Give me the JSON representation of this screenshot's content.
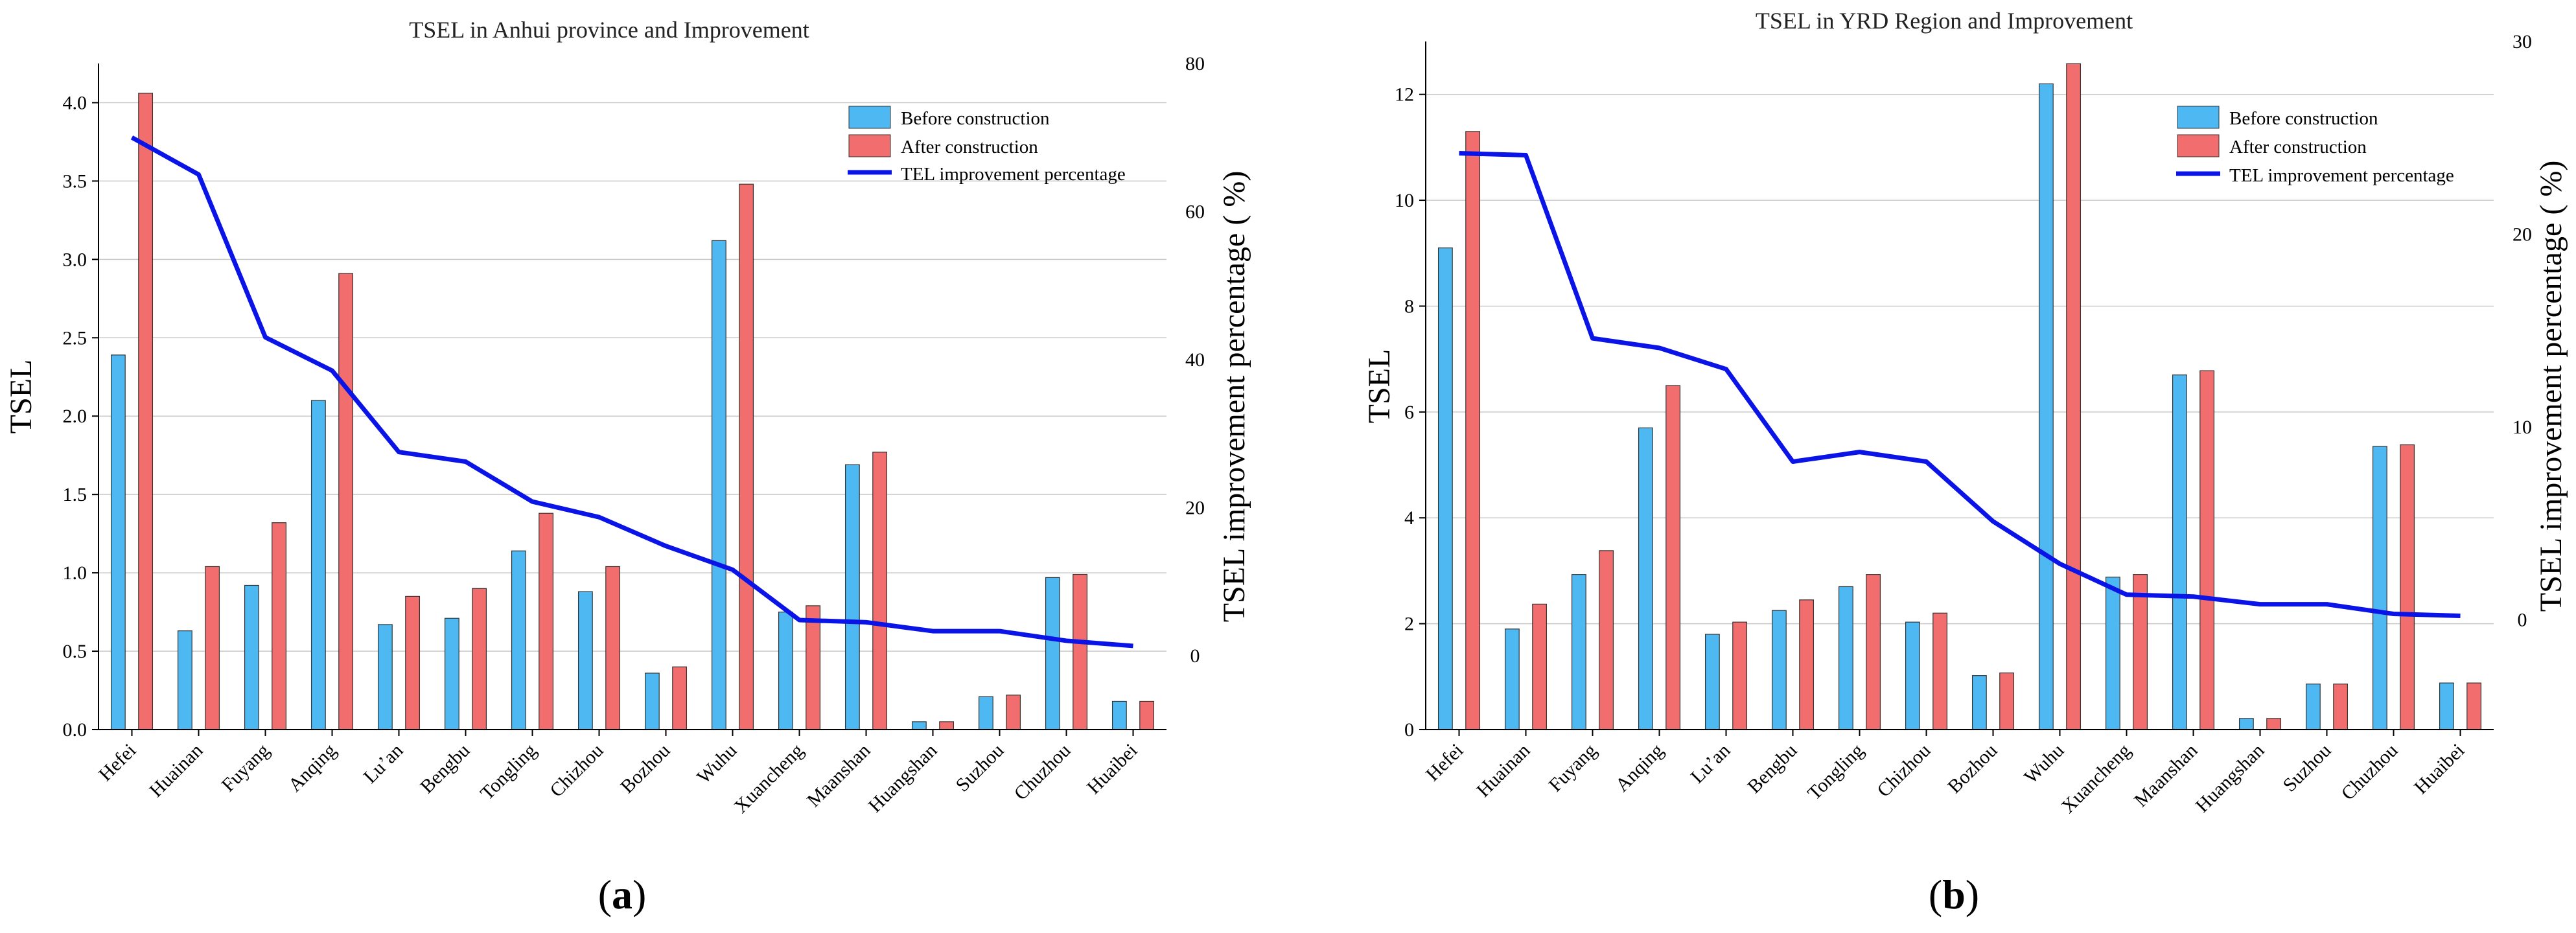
{
  "figure": {
    "panel_labels": [
      {
        "open": "(",
        "letter": "a",
        "close": ")"
      },
      {
        "open": "(",
        "letter": "b",
        "close": ")"
      }
    ]
  },
  "colors": {
    "before": "#4db8f2",
    "after": "#f26d6d",
    "line": "#0a14e6",
    "bar_edge": "#333333"
  },
  "chart_data": [
    {
      "type": "bar",
      "title": "TSEL in Anhui province and Improvement",
      "categories": [
        "Hefei",
        "Huainan",
        "Fuyang",
        "Anqing",
        "Lu’an",
        "Bengbu",
        "Tongling",
        "Chizhou",
        "Bozhou",
        "Wuhu",
        "Xuancheng",
        "Maanshan",
        "Huangshan",
        "Suzhou",
        "Chuzhou",
        "Huaibei"
      ],
      "xlabel": "",
      "ylabel": "TSEL",
      "ylim": [
        0,
        4.25
      ],
      "yticks": [
        0.0,
        0.5,
        1.0,
        1.5,
        2.0,
        2.5,
        3.0,
        3.5,
        4.0
      ],
      "ytick_labels": [
        "0.0",
        "0.5",
        "1.0",
        "1.5",
        "2.0",
        "2.5",
        "3.0",
        "3.5",
        "4.0"
      ],
      "y2label": "TSEL improvement percentage (  %)",
      "y2lim": [
        -10,
        80
      ],
      "y2ticks": [
        0,
        20,
        40,
        60,
        80
      ],
      "y2tick_labels": [
        "0",
        "20",
        "40",
        "60",
        "80"
      ],
      "grid": true,
      "legend_position": "top-right",
      "series": [
        {
          "name": "Before construction",
          "kind": "bar",
          "axis": "left",
          "values": [
            2.39,
            0.63,
            0.92,
            2.1,
            0.67,
            0.71,
            1.14,
            0.88,
            0.36,
            3.12,
            0.75,
            1.69,
            0.05,
            0.21,
            0.97,
            0.18
          ]
        },
        {
          "name": "After construction",
          "kind": "bar",
          "axis": "left",
          "values": [
            4.06,
            1.04,
            1.32,
            2.91,
            0.85,
            0.9,
            1.38,
            1.04,
            0.4,
            3.48,
            0.79,
            1.77,
            0.05,
            0.22,
            0.99,
            0.18
          ]
        },
        {
          "name": "TEL improvement percentage",
          "kind": "line",
          "axis": "right",
          "values": [
            70,
            65,
            43,
            38.5,
            27.5,
            26.2,
            20.8,
            18.7,
            14.8,
            11.6,
            4.8,
            4.5,
            3.3,
            3.3,
            2.0,
            1.3
          ]
        }
      ]
    },
    {
      "type": "bar",
      "title": "TSEL in YRD Region and Improvement",
      "categories": [
        "Hefei",
        "Huainan",
        "Fuyang",
        "Anqing",
        "Lu’an",
        "Bengbu",
        "Tongling",
        "Chizhou",
        "Bozhou",
        "Wuhu",
        "Xuancheng",
        "Maanshan",
        "Huangshan",
        "Suzhou",
        "Chuzhou",
        "Huaibei"
      ],
      "xlabel": "",
      "ylabel": "TSEL",
      "ylim": [
        0,
        13
      ],
      "yticks": [
        0,
        2,
        4,
        6,
        8,
        10,
        12
      ],
      "ytick_labels": [
        "0",
        "2",
        "4",
        "6",
        "8",
        "10",
        "12"
      ],
      "y2label": "TSEL improvement percentage (  %)",
      "y2lim": [
        -5.7,
        30
      ],
      "y2ticks": [
        0,
        10,
        20,
        30
      ],
      "y2tick_labels": [
        "0",
        "10",
        "20",
        "30"
      ],
      "grid": true,
      "legend_position": "top-right",
      "series": [
        {
          "name": "Before construction",
          "kind": "bar",
          "axis": "left",
          "values": [
            9.1,
            1.9,
            2.93,
            5.7,
            1.8,
            2.25,
            2.7,
            2.03,
            1.02,
            12.2,
            2.88,
            6.7,
            0.21,
            0.86,
            5.35,
            0.88
          ]
        },
        {
          "name": "After construction",
          "kind": "bar",
          "axis": "left",
          "values": [
            11.3,
            2.37,
            3.38,
            6.5,
            2.03,
            2.45,
            2.93,
            2.2,
            1.07,
            12.58,
            2.93,
            6.78,
            0.21,
            0.86,
            5.38,
            0.88
          ]
        },
        {
          "name": "TEL improvement percentage",
          "kind": "line",
          "axis": "right",
          "values": [
            24.2,
            24.1,
            14.6,
            14.1,
            13.0,
            8.2,
            8.7,
            8.2,
            5.1,
            2.9,
            1.3,
            1.2,
            0.8,
            0.8,
            0.3,
            0.2
          ]
        }
      ]
    }
  ]
}
